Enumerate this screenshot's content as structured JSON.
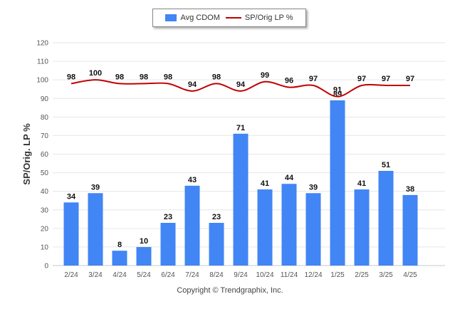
{
  "legend": {
    "bar_label": "Avg CDOM",
    "line_label": "SP/Orig LP %"
  },
  "copyright": "Copyright © Trendgraphix, Inc.",
  "chart_data": {
    "type": "bar",
    "categories": [
      "2/24",
      "3/24",
      "4/24",
      "5/24",
      "6/24",
      "7/24",
      "8/24",
      "9/24",
      "10/24",
      "11/24",
      "12/24",
      "1/25",
      "2/25",
      "3/25",
      "4/25"
    ],
    "series": [
      {
        "name": "Avg CDOM",
        "type": "bar",
        "color": "#4285f4",
        "values": [
          34,
          39,
          8,
          10,
          23,
          43,
          23,
          71,
          41,
          44,
          39,
          89,
          41,
          51,
          38
        ]
      },
      {
        "name": "SP/Orig LP %",
        "type": "line",
        "color": "#c00000",
        "values": [
          98,
          100,
          98,
          98,
          98,
          94,
          98,
          94,
          99,
          96,
          97,
          91,
          97,
          97,
          97
        ]
      }
    ],
    "ylabel": "SP/Orig. LP %",
    "ylim": [
      0,
      120
    ],
    "yticks": [
      0,
      10,
      20,
      30,
      40,
      50,
      60,
      70,
      80,
      90,
      100,
      110,
      120
    ],
    "grid": true,
    "legend_position": "top-center"
  }
}
